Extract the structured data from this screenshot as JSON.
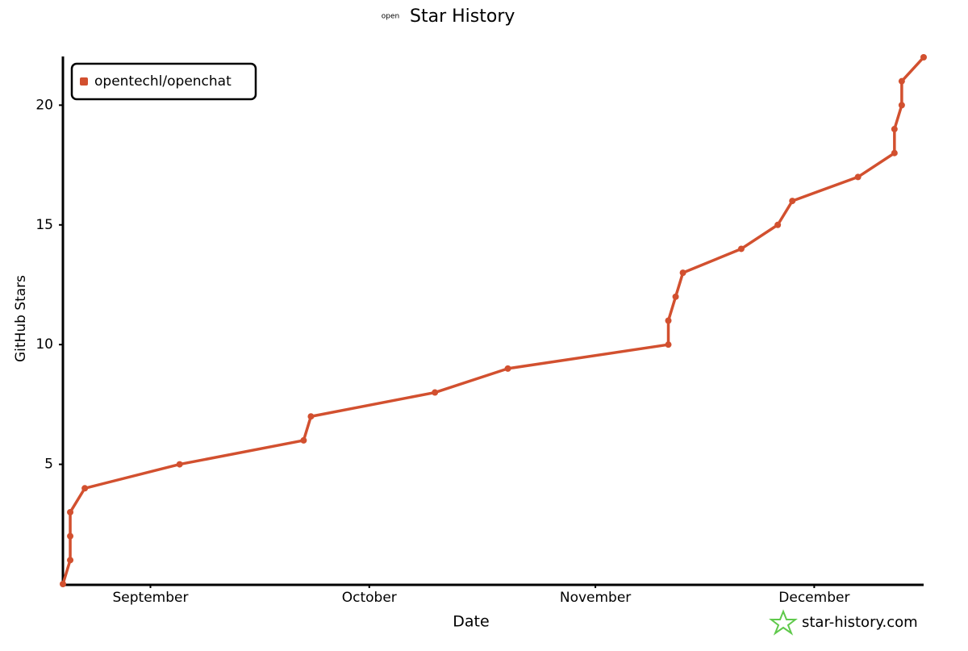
{
  "chart_data": {
    "type": "line",
    "title": "Star History",
    "title_icon_text": "open",
    "x_label": "Date",
    "y_label": "GitHub Stars",
    "watermark": "star-history.com",
    "x": [
      232,
      233,
      233,
      233,
      235,
      248,
      265,
      266,
      283,
      293,
      315,
      315,
      316,
      317,
      325,
      330,
      332,
      341,
      346,
      346,
      347,
      347,
      350
    ],
    "series": [
      {
        "name": "opentechl/openchat",
        "color": "#d2502f",
        "values": [
          0,
          1,
          2,
          3,
          4,
          5,
          6,
          7,
          8,
          9,
          10,
          11,
          12,
          13,
          14,
          15,
          16,
          17,
          18,
          19,
          20,
          21,
          22
        ]
      }
    ],
    "xlim": [
      232,
      350
    ],
    "xticks": [
      {
        "value": 244,
        "label": "September"
      },
      {
        "value": 274,
        "label": "October"
      },
      {
        "value": 305,
        "label": "November"
      },
      {
        "value": 335,
        "label": "December"
      }
    ],
    "ylim": [
      0,
      22
    ],
    "yticks": [
      5,
      10,
      15,
      20
    ],
    "legend": "top-left",
    "grid": false
  }
}
